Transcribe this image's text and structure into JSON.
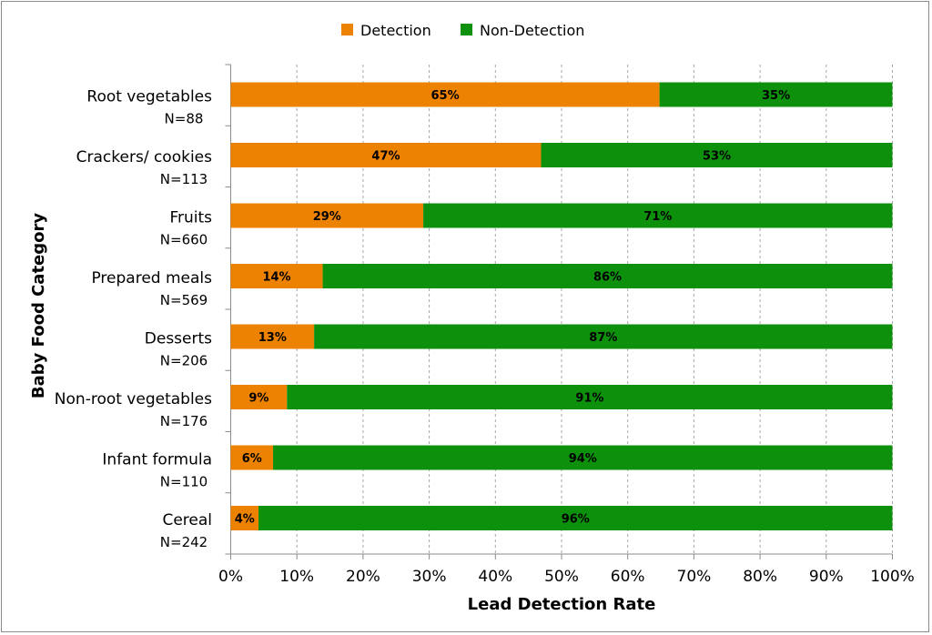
{
  "chart_data": {
    "type": "bar",
    "orientation": "horizontal",
    "stacked": true,
    "xlabel": "Lead Detection Rate",
    "ylabel": "Baby Food Category",
    "xlim": [
      0,
      100
    ],
    "x_ticks": [
      "0%",
      "10%",
      "20%",
      "30%",
      "40%",
      "50%",
      "60%",
      "70%",
      "80%",
      "90%",
      "100%"
    ],
    "grid": "vertical dashed",
    "legend_position": "top-center",
    "categories": [
      "Root vegetables",
      "Crackers/ cookies",
      "Fruits",
      "Prepared meals",
      "Desserts",
      "Non-root vegetables",
      "Infant formula",
      "Cereal"
    ],
    "sample_sizes": [
      "N=88",
      "N=113",
      "N=660",
      "N=569",
      "N=206",
      "N=176",
      "N=110",
      "N=242"
    ],
    "series": [
      {
        "name": "Detection",
        "color": "#ec8200",
        "values": [
          65,
          47,
          29,
          14,
          13,
          9,
          6,
          4
        ],
        "labels": [
          "65%",
          "47%",
          "29%",
          "14%",
          "13%",
          "9%",
          "6%",
          "4%"
        ],
        "bar_values": [
          64.8,
          46.9,
          29.1,
          13.9,
          12.6,
          8.5,
          6.4,
          4.2
        ]
      },
      {
        "name": "Non-Detection",
        "color": "#0d910d",
        "values": [
          35,
          53,
          71,
          86,
          87,
          91,
          94,
          96
        ],
        "labels": [
          "35%",
          "53%",
          "71%",
          "86%",
          "87%",
          "91%",
          "94%",
          "96%"
        ]
      }
    ]
  }
}
